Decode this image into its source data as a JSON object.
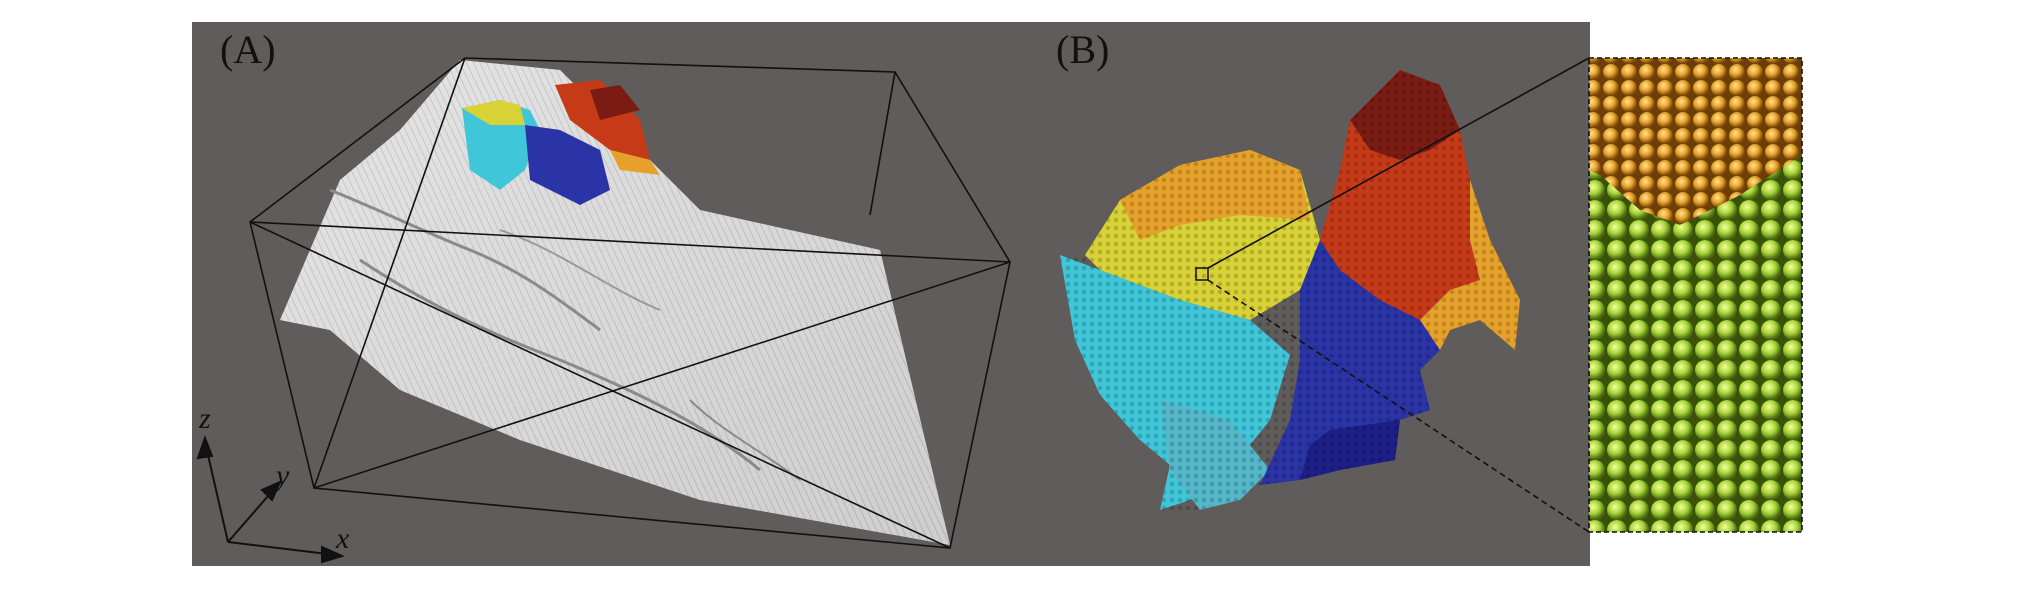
{
  "panels": [
    {
      "label": "(A)"
    },
    {
      "label": "(B)"
    }
  ],
  "axes": {
    "x": "x",
    "y": "y",
    "z": "z"
  },
  "colors": {
    "background": "#5f5c5b",
    "terrain": "#d9d9d9",
    "cyan": "#3fc6d8",
    "teal": "#54b7c9",
    "blue": "#2b34a6",
    "darkblue": "#1c1f86",
    "yellow": "#d8d236",
    "orange": "#e6a12a",
    "red": "#c63a18",
    "darkred": "#7a1c14",
    "green": "#a8d43a"
  }
}
